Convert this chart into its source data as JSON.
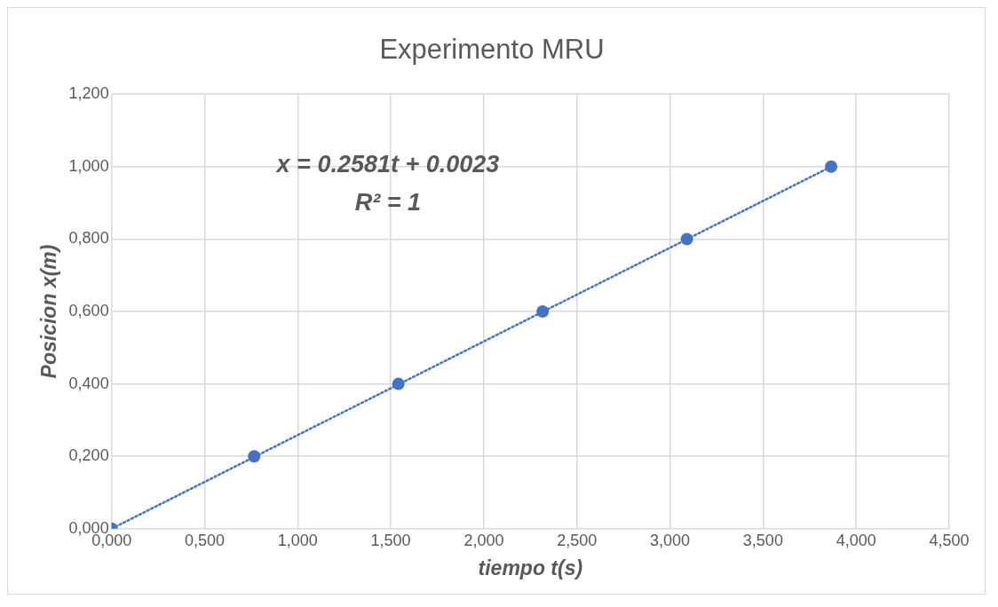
{
  "chart_data": {
    "type": "scatter",
    "title": "Experimento MRU",
    "xlabel": "tiempo t(s)",
    "ylabel": "Posicion x(m)",
    "annotations": [
      "x = 0.2581t + 0.0023",
      "R² = 1"
    ],
    "series": [
      {
        "type": "scatter",
        "color": "#4472c4",
        "marker": "circle",
        "x": [
          0,
          0.766,
          1.541,
          2.316,
          3.091,
          3.866
        ],
        "values": [
          0,
          0.2,
          0.4,
          0.6,
          0.8,
          1.0
        ]
      },
      {
        "type": "line",
        "color": "#4472c4",
        "marker": "none",
        "line_style": "dotted",
        "x": [
          0,
          3.866
        ],
        "values": [
          0,
          1.0
        ]
      }
    ],
    "xlim": [
      0,
      4.5
    ],
    "xticks": [
      {
        "value": 0,
        "label": "0,000"
      },
      {
        "value": 0.5,
        "label": "0,500"
      },
      {
        "value": 1,
        "label": "1,000"
      },
      {
        "value": 1.5,
        "label": "1,500"
      },
      {
        "value": 2,
        "label": "2,000"
      },
      {
        "value": 2.5,
        "label": "2,500"
      },
      {
        "value": 3,
        "label": "3,000"
      },
      {
        "value": 3.5,
        "label": "3,500"
      },
      {
        "value": 4,
        "label": "4,000"
      },
      {
        "value": 4.5,
        "label": "4,500"
      }
    ],
    "ylim": [
      0,
      1.2
    ],
    "yticks": [
      {
        "value": 0,
        "label": "0,000"
      },
      {
        "value": 0.2,
        "label": "0,200"
      },
      {
        "value": 0.4,
        "label": "0,400"
      },
      {
        "value": 0.6,
        "label": "0,600"
      },
      {
        "value": 0.8,
        "label": "0,800"
      },
      {
        "value": 1,
        "label": "1,000"
      },
      {
        "value": 1.2,
        "label": "1,200"
      }
    ],
    "grid": true,
    "legend": false
  }
}
